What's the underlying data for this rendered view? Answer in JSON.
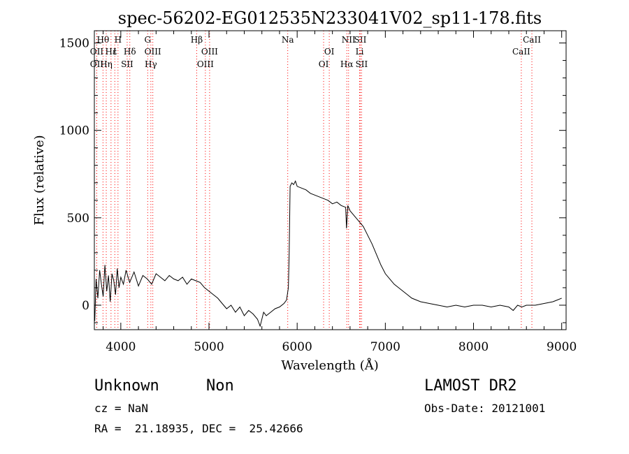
{
  "chart_data": {
    "type": "line",
    "title": "spec-56202-EG012535N233041V02_sp11-178.fits",
    "xlabel": "Wavelength (Å)",
    "ylabel": "Flux (relative)",
    "xlim": [
      3700,
      9050
    ],
    "ylim": [
      -140,
      1570
    ],
    "xticks": [
      "4000",
      "5000",
      "6000",
      "7000",
      "8000",
      "9000"
    ],
    "yticks": [
      "0",
      "500",
      "1000",
      "1500"
    ],
    "grid": false,
    "series": [
      {
        "x": [
          3705,
          3720,
          3740,
          3760,
          3780,
          3800,
          3820,
          3840,
          3860,
          3880,
          3900,
          3920,
          3940,
          3960,
          3980,
          4000,
          4030,
          4060,
          4100,
          4150,
          4200,
          4250,
          4300,
          4350,
          4400,
          4450,
          4500,
          4550,
          4600,
          4650,
          4700,
          4750,
          4800,
          4850,
          4900,
          4950,
          5000,
          5050,
          5100,
          5150,
          5200,
          5250,
          5300,
          5350,
          5400,
          5450,
          5500,
          5550,
          5580,
          5620,
          5650,
          5700,
          5750,
          5800,
          5850,
          5880,
          5900,
          5910,
          5920,
          5940,
          5960,
          5980,
          6000,
          6050,
          6100,
          6150,
          6200,
          6250,
          6300,
          6350,
          6400,
          6450,
          6500,
          6550,
          6560,
          6575,
          6600,
          6650,
          6700,
          6750,
          6800,
          6850,
          6900,
          6950,
          7000,
          7050,
          7100,
          7150,
          7200,
          7250,
          7300,
          7400,
          7500,
          7600,
          7700,
          7800,
          7900,
          8000,
          8100,
          8200,
          8300,
          8400,
          8450,
          8500,
          8550,
          8600,
          8700,
          8800,
          8900,
          8950,
          9000
        ],
        "y": [
          -90,
          150,
          40,
          200,
          120,
          50,
          230,
          80,
          170,
          20,
          180,
          140,
          60,
          210,
          100,
          160,
          120,
          200,
          130,
          190,
          110,
          170,
          150,
          120,
          180,
          160,
          140,
          170,
          150,
          140,
          160,
          120,
          150,
          140,
          130,
          100,
          80,
          60,
          40,
          10,
          -20,
          0,
          -40,
          -10,
          -60,
          -30,
          -50,
          -80,
          -120,
          -40,
          -60,
          -40,
          -20,
          -10,
          10,
          30,
          100,
          300,
          680,
          700,
          690,
          710,
          680,
          670,
          660,
          640,
          630,
          620,
          610,
          600,
          580,
          590,
          570,
          560,
          440,
          570,
          540,
          510,
          480,
          450,
          400,
          350,
          290,
          230,
          180,
          150,
          120,
          100,
          80,
          60,
          40,
          20,
          10,
          0,
          -10,
          0,
          -10,
          0,
          0,
          -10,
          0,
          -10,
          -30,
          0,
          -10,
          0,
          0,
          10,
          20,
          30,
          40
        ]
      }
    ],
    "lines": [
      {
        "label": "Hθ",
        "x": 3798,
        "row": 1
      },
      {
        "label": "OII",
        "x": 3727,
        "row": 2
      },
      {
        "label": "OII",
        "x": 3727,
        "row": 3
      },
      {
        "label": "Hε",
        "x": 3889,
        "row": 2
      },
      {
        "label": "Hη",
        "x": 3835,
        "row": 3
      },
      {
        "label": "H",
        "x": 3968,
        "row": 1
      },
      {
        "label": "I",
        "x": 3932,
        "row": 2
      },
      {
        "label": "Hδ",
        "x": 4102,
        "row": 2
      },
      {
        "label": "SII",
        "x": 4072,
        "row": 3
      },
      {
        "label": "G",
        "x": 4305,
        "row": 1
      },
      {
        "label": "OIII",
        "x": 4363,
        "row": 2
      },
      {
        "label": "Hγ",
        "x": 4341,
        "row": 3
      },
      {
        "label": "Hβ",
        "x": 4861,
        "row": 1
      },
      {
        "label": "OIII",
        "x": 5007,
        "row": 2
      },
      {
        "label": "OIII",
        "x": 4959,
        "row": 3
      },
      {
        "label": "Na",
        "x": 5893,
        "row": 1
      },
      {
        "label": "OI",
        "x": 6364,
        "row": 2
      },
      {
        "label": "OI",
        "x": 6300,
        "row": 3
      },
      {
        "label": "NII",
        "x": 6583,
        "row": 1
      },
      {
        "label": "SII",
        "x": 6716,
        "row": 1
      },
      {
        "label": "Li",
        "x": 6708,
        "row": 2
      },
      {
        "label": "Hα",
        "x": 6563,
        "row": 3
      },
      {
        "label": "SII",
        "x": 6731,
        "row": 3
      },
      {
        "label": "CaII",
        "x": 8662,
        "row": 1
      },
      {
        "label": "CaII",
        "x": 8542,
        "row": 2
      }
    ],
    "line_color": "#ff0000"
  },
  "info": {
    "class": "Unknown",
    "subclass": "Non",
    "cz": "cz = NaN",
    "radec": "RA =  21.18935, DEC =  25.42666",
    "survey": "LAMOST DR2",
    "obsdate": "Obs-Date: 20121001"
  }
}
